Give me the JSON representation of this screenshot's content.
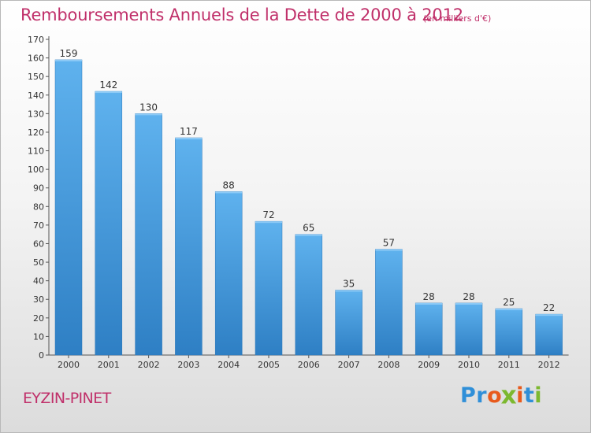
{
  "chart_data": {
    "type": "bar",
    "title": "Remboursements Annuels de la Dette de 2000 à 2012",
    "unit_note": "(en milliers d'€)",
    "categories": [
      "2000",
      "2001",
      "2002",
      "2003",
      "2004",
      "2005",
      "2006",
      "2007",
      "2008",
      "2009",
      "2010",
      "2011",
      "2012"
    ],
    "values": [
      159,
      142,
      130,
      117,
      88,
      72,
      65,
      35,
      57,
      28,
      28,
      25,
      22
    ],
    "data_labels": [
      "159",
      "142",
      "130",
      "117",
      "88",
      "72",
      "65",
      "35",
      "57",
      "28",
      "28",
      "25",
      "22"
    ],
    "ylim": [
      0,
      170
    ],
    "y_ticks": [
      0,
      10,
      20,
      30,
      40,
      50,
      60,
      70,
      80,
      90,
      100,
      110,
      120,
      130,
      140,
      150,
      160,
      170
    ],
    "grid": false,
    "legend": "none",
    "bar_color": "#4a9fe0",
    "xlabel": "",
    "ylabel": ""
  },
  "footer": {
    "commune": "EYZIN-PINET",
    "logo_letters": [
      {
        "char": "P",
        "color": "#2f8fd8"
      },
      {
        "char": "r",
        "color": "#2f8fd8"
      },
      {
        "char": "o",
        "color": "#e85a1c"
      },
      {
        "char": "x",
        "color": "#7cb82f"
      },
      {
        "char": "i",
        "color": "#e85a1c"
      },
      {
        "char": "t",
        "color": "#2f8fd8"
      },
      {
        "char": "i",
        "color": "#7cb82f"
      }
    ]
  },
  "colors": {
    "title": "#c0306a",
    "axis_text": "#333333"
  }
}
